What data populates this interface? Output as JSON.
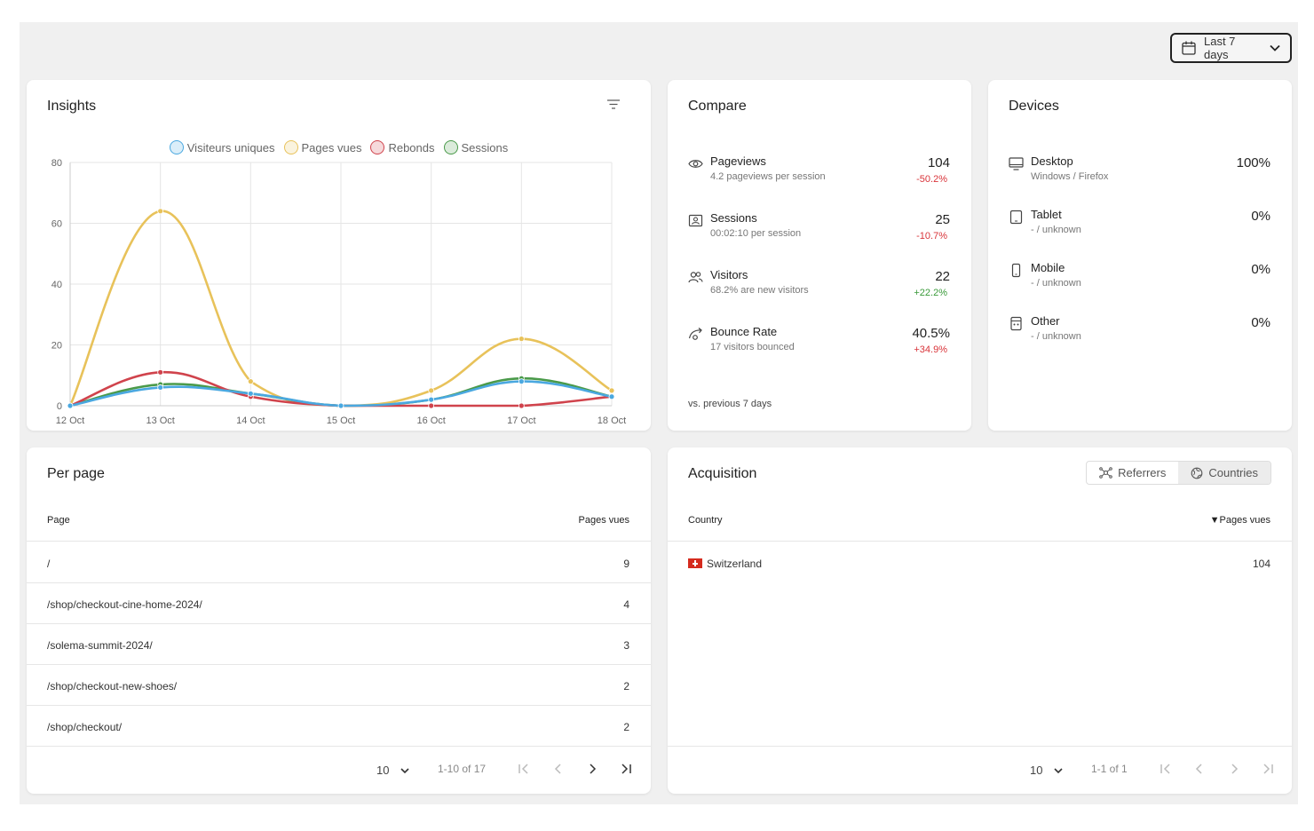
{
  "header": {
    "date_range_label": "Last 7 days"
  },
  "insights": {
    "title": "Insights",
    "legend": [
      {
        "name": "Visiteurs uniques",
        "color": "#4aa8e0"
      },
      {
        "name": "Pages vues",
        "color": "#e8c25a"
      },
      {
        "name": "Rebonds",
        "color": "#d0434c"
      },
      {
        "name": "Sessions",
        "color": "#4a9a4a"
      }
    ]
  },
  "chart_data": {
    "type": "line",
    "x": [
      "12 Oct",
      "13 Oct",
      "14 Oct",
      "15 Oct",
      "16 Oct",
      "17 Oct",
      "18 Oct"
    ],
    "ylim": [
      0,
      80
    ],
    "yticks": [
      0,
      20,
      40,
      60,
      80
    ],
    "grid": true,
    "legend_position": "top",
    "series": [
      {
        "name": "Pages vues",
        "color": "#e8c25a",
        "values": [
          0,
          64,
          8,
          0,
          5,
          22,
          5
        ]
      },
      {
        "name": "Sessions",
        "color": "#4a9a4a",
        "values": [
          0,
          7,
          4,
          0,
          2,
          9,
          3
        ]
      },
      {
        "name": "Rebonds",
        "color": "#d0434c",
        "values": [
          0,
          11,
          3,
          0,
          0,
          0,
          3
        ]
      },
      {
        "name": "Visiteurs uniques",
        "color": "#4aa8e0",
        "values": [
          0,
          6,
          4,
          0,
          2,
          8,
          3
        ]
      }
    ]
  },
  "compare": {
    "title": "Compare",
    "items": [
      {
        "icon": "eye-icon",
        "name": "Pageviews",
        "sub": "4.2 pageviews per session",
        "value": "104",
        "delta": "-50.2%"
      },
      {
        "icon": "sessions-icon",
        "name": "Sessions",
        "sub": "00:02:10 per session",
        "value": "25",
        "delta": "-10.7%"
      },
      {
        "icon": "users-icon",
        "name": "Visitors",
        "sub": "68.2% are new visitors",
        "value": "22",
        "delta": "+22.2%"
      },
      {
        "icon": "bounce-icon",
        "name": "Bounce Rate",
        "sub": "17 visitors bounced",
        "value": "40.5%",
        "delta": "+34.9%"
      }
    ],
    "footnote": "vs. previous 7 days"
  },
  "devices": {
    "title": "Devices",
    "items": [
      {
        "icon": "desktop-icon",
        "name": "Desktop",
        "sub": "Windows / Firefox",
        "value": "100%"
      },
      {
        "icon": "tablet-icon",
        "name": "Tablet",
        "sub": "- / unknown",
        "value": "0%"
      },
      {
        "icon": "mobile-icon",
        "name": "Mobile",
        "sub": "- / unknown",
        "value": "0%"
      },
      {
        "icon": "other-device-icon",
        "name": "Other",
        "sub": "- / unknown",
        "value": "0%"
      }
    ]
  },
  "per_page": {
    "title": "Per page",
    "columns": [
      "Page",
      "Pages vues"
    ],
    "rows": [
      {
        "page": "/",
        "views": "9"
      },
      {
        "page": "/shop/checkout-cine-home-2024/",
        "views": "4"
      },
      {
        "page": "/solema-summit-2024/",
        "views": "3"
      },
      {
        "page": "/shop/checkout-new-shoes/",
        "views": "2"
      },
      {
        "page": "/shop/checkout/",
        "views": "2"
      }
    ],
    "page_size": "10",
    "range": "1-10 of 17"
  },
  "acquisition": {
    "title": "Acquisition",
    "tabs": [
      "Referrers",
      "Countries"
    ],
    "columns": [
      "Country",
      "▼Pages vues"
    ],
    "rows": [
      {
        "country": "Switzerland",
        "views": "104"
      }
    ],
    "page_size": "10",
    "range": "1-1 of 1"
  }
}
